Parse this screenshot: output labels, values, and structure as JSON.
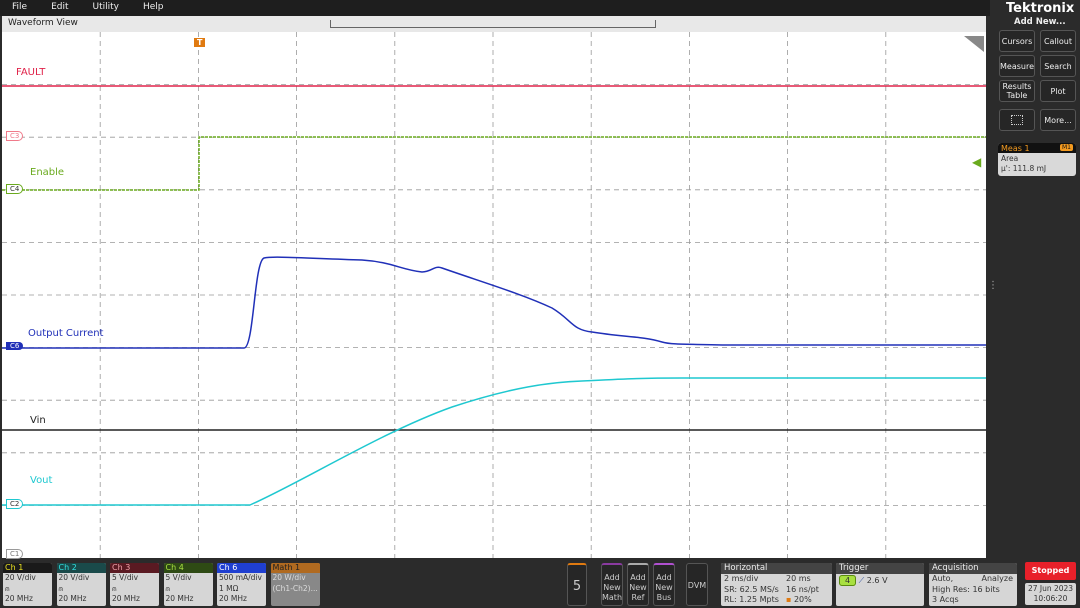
{
  "menu": [
    "File",
    "Edit",
    "Utility",
    "Help"
  ],
  "view_title": "Waveform View",
  "brand": "Tektronix",
  "side": {
    "add_new": "Add New...",
    "buttons": [
      "Cursors",
      "Callout",
      "Measure",
      "Search",
      "Results Table",
      "Plot",
      "More..."
    ]
  },
  "meas": {
    "title": "Meas 1",
    "badge": "M1",
    "type": "Area",
    "value": "μ': 111.8 mJ"
  },
  "traces": {
    "fault": {
      "label": "FAULT",
      "color": "#e0234a"
    },
    "enable": {
      "label": "Enable",
      "color": "#6aaa1e",
      "marker": "C4"
    },
    "c3": {
      "marker": "C3",
      "color": "#f07a8a"
    },
    "current": {
      "label": "Output Current",
      "color": "#2030b8",
      "marker": "C6"
    },
    "vin": {
      "label": "Vin",
      "color": "#222222"
    },
    "vout": {
      "label": "Vout",
      "color": "#1fc8d0",
      "marker": "C2"
    },
    "c1": {
      "marker": "C1"
    }
  },
  "trigger_marker": "T",
  "channels": [
    {
      "name": "Ch 1",
      "color": "#1a1a1a",
      "tc": "#e8e020",
      "l1": "20 V/div",
      "l2": "⍝",
      "l3": "20 MHz"
    },
    {
      "name": "Ch 2",
      "color": "#1a4a4a",
      "tc": "#30e0e0",
      "l1": "20 V/div",
      "l2": "⍝",
      "l3": "20 MHz"
    },
    {
      "name": "Ch 3",
      "color": "#5a1a22",
      "tc": "#f0a0a8",
      "l1": "5 V/div",
      "l2": "⍝",
      "l3": "20 MHz"
    },
    {
      "name": "Ch 4",
      "color": "#2e4a14",
      "tc": "#a8e040",
      "l1": "5 V/div",
      "l2": "⍝",
      "l3": "20 MHz"
    },
    {
      "name": "Ch 6",
      "color": "#1f3fd0",
      "tc": "#ffffff",
      "l1": "500 mA/div",
      "l2": "1 MΩ",
      "l3": "20 MHz"
    },
    {
      "name": "Math 1",
      "color": "#b06a20",
      "tc": "#222",
      "l1": "20 W/div",
      "l2": "(Ch1-Ch2)...",
      "l3": ""
    }
  ],
  "bottom": {
    "five": "5",
    "math": "Add New Math",
    "ref": "Add New Ref",
    "bus": "Add New Bus",
    "dvm": "DVM"
  },
  "horizontal": {
    "title": "Horizontal",
    "scale": "2 ms/div",
    "pos": "20 ms",
    "sr": "SR: 62.5 MS/s",
    "pt": "16 ns/pt",
    "rl": "RL: 1.25 Mpts",
    "pct": "20%"
  },
  "trigger": {
    "title": "Trigger",
    "source": "4",
    "level": "2.6 V"
  },
  "acquisition": {
    "title": "Acquisition",
    "mode": "Auto,",
    "analyze": "Analyze",
    "res": "High Res: 16 bits",
    "acqs": "3 Acqs"
  },
  "status": {
    "label": "Stopped",
    "date": "27 Jun 2023",
    "time": "10:06:20"
  }
}
